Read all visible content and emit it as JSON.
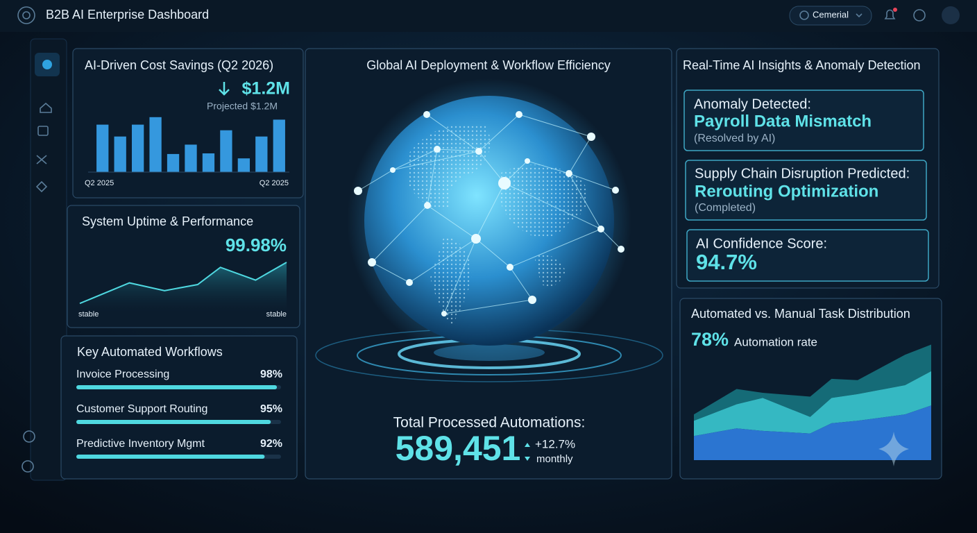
{
  "header": {
    "title": "B2B AI Enterprise Dashboard",
    "account": "Cemerial"
  },
  "chart_data": [
    {
      "type": "bar",
      "title": "AI-Driven Cost Savings (Q2 2026)",
      "headline": "$1.2M",
      "subtitle": "Projected $1.2M",
      "categories": [
        "Q2 2025",
        null,
        null,
        null,
        null,
        null,
        null,
        null,
        null,
        null,
        "Q2 2025"
      ],
      "values": [
        76,
        57,
        76,
        88,
        29,
        44,
        30,
        67,
        22,
        57,
        84
      ],
      "ylim": [
        0,
        100
      ],
      "color": "#3aa6f2"
    },
    {
      "type": "line",
      "title": "System Uptime & Performance",
      "headline": "99.98%",
      "x": [
        0,
        24,
        41,
        57,
        68,
        85,
        100
      ],
      "values": [
        16,
        53,
        39,
        50,
        81,
        58,
        90
      ],
      "xlim": [
        0,
        100
      ],
      "ylim": [
        0,
        100
      ],
      "annotations": [
        "stable",
        "stable"
      ],
      "color": "#4fd8e0"
    },
    {
      "type": "hbar",
      "title": "Key Automated Workflows",
      "categories": [
        "Invoice Processing",
        "Customer Support Routing",
        "Predictive Inventory Mgmt"
      ],
      "values": [
        98,
        95,
        92
      ],
      "value_labels": [
        "98%",
        "95%",
        "92%"
      ],
      "xlim": [
        0,
        100
      ],
      "color": "#4fd8e0"
    },
    {
      "type": "area",
      "title": "Automated vs. Manual Task Distribution",
      "headline": "78%",
      "subtitle": "Automation rate",
      "x": [
        0,
        18,
        29,
        49,
        58,
        69,
        89,
        100
      ],
      "xlim": [
        0,
        100
      ],
      "ylim": [
        0,
        100
      ],
      "series": [
        {
          "color": "#2f7de0",
          "values": [
            19,
            25,
            23,
            21,
            29,
            31,
            36,
            43
          ]
        },
        {
          "color": "#39c6cf",
          "values": [
            12,
            19,
            26,
            13,
            20,
            21,
            23,
            27
          ]
        },
        {
          "color": "#17727e",
          "values": [
            5,
            12,
            4,
            16,
            15,
            11,
            24,
            21
          ]
        }
      ]
    }
  ],
  "globe": {
    "title": "Global AI Deployment & Workflow Efficiency",
    "total_label": "Total Processed Automations:",
    "total": "589,451",
    "change": "+12.7%",
    "period": "monthly"
  },
  "insights": {
    "title": "Real-Time AI Insights & Anomaly Detection",
    "cards": [
      {
        "heading": "Anomaly Detected:",
        "highlight": "Payroll Data Mismatch",
        "note": "(Resolved by AI)"
      },
      {
        "heading": "Supply Chain Disruption Predicted:",
        "highlight": "Rerouting Optimization",
        "note": "(Completed)"
      },
      {
        "heading": "AI Confidence Score:",
        "highlight": "94.7%"
      }
    ]
  }
}
